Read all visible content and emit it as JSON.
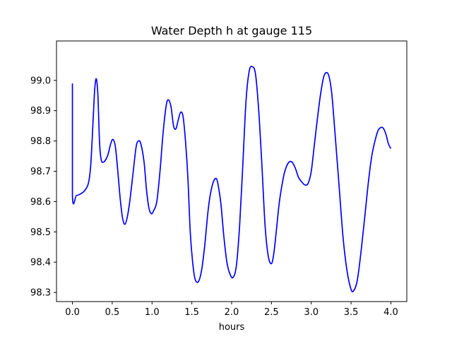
{
  "chart_data": {
    "type": "line",
    "title": "Water Depth h at gauge 115",
    "xlabel": "hours",
    "ylabel": "",
    "xlim": [
      -0.2,
      4.2
    ],
    "ylim": [
      98.27,
      99.13
    ],
    "x_ticks": [
      0.0,
      0.5,
      1.0,
      1.5,
      2.0,
      2.5,
      3.0,
      3.5,
      4.0
    ],
    "x_tick_labels": [
      "0.0",
      "0.5",
      "1.0",
      "1.5",
      "2.0",
      "2.5",
      "3.0",
      "3.5",
      "4.0"
    ],
    "y_ticks": [
      98.3,
      98.4,
      98.5,
      98.6,
      98.7,
      98.8,
      98.9,
      99.0
    ],
    "y_tick_labels": [
      "98.3",
      "98.4",
      "98.5",
      "98.6",
      "98.7",
      "98.8",
      "98.9",
      "99.0"
    ],
    "grid": false,
    "series": [
      {
        "color": "#0000ff",
        "x": [
          0.0,
          0.0,
          0.05,
          0.1,
          0.15,
          0.2,
          0.23,
          0.26,
          0.28,
          0.3,
          0.32,
          0.34,
          0.36,
          0.39,
          0.44,
          0.48,
          0.51,
          0.54,
          0.57,
          0.6,
          0.63,
          0.66,
          0.69,
          0.72,
          0.76,
          0.8,
          0.83,
          0.86,
          0.9,
          0.93,
          0.96,
          0.99,
          1.02,
          1.06,
          1.1,
          1.14,
          1.18,
          1.21,
          1.24,
          1.27,
          1.3,
          1.33,
          1.36,
          1.39,
          1.42,
          1.45,
          1.48,
          1.51,
          1.54,
          1.58,
          1.62,
          1.66,
          1.7,
          1.73,
          1.77,
          1.81,
          1.84,
          1.87,
          1.9,
          1.94,
          1.98,
          2.02,
          2.06,
          2.1,
          2.14,
          2.18,
          2.22,
          2.26,
          2.3,
          2.34,
          2.38,
          2.42,
          2.46,
          2.5,
          2.53,
          2.56,
          2.6,
          2.65,
          2.68,
          2.72,
          2.76,
          2.8,
          2.84,
          2.88,
          2.92,
          2.96,
          3.0,
          3.04,
          3.08,
          3.12,
          3.16,
          3.2,
          3.23,
          3.26,
          3.3,
          3.35,
          3.4,
          3.45,
          3.5,
          3.53,
          3.57,
          3.6,
          3.64,
          3.68,
          3.72,
          3.76,
          3.8,
          3.84,
          3.88,
          3.91,
          3.94,
          3.97,
          4.0
        ],
        "y": [
          98.99,
          98.62,
          98.62,
          98.625,
          98.635,
          98.66,
          98.72,
          98.87,
          98.97,
          99.005,
          98.95,
          98.8,
          98.74,
          98.73,
          98.75,
          98.79,
          98.805,
          98.78,
          98.7,
          98.61,
          98.545,
          98.525,
          98.55,
          98.6,
          98.69,
          98.78,
          98.8,
          98.79,
          98.73,
          98.64,
          98.58,
          98.56,
          98.57,
          98.6,
          98.7,
          98.83,
          98.92,
          98.935,
          98.91,
          98.85,
          98.84,
          98.87,
          98.895,
          98.88,
          98.8,
          98.68,
          98.5,
          98.4,
          98.345,
          98.335,
          98.37,
          98.45,
          98.56,
          98.62,
          98.665,
          98.675,
          98.64,
          98.58,
          98.49,
          98.4,
          98.36,
          98.35,
          98.39,
          98.52,
          98.72,
          98.93,
          99.03,
          99.045,
          99.02,
          98.9,
          98.72,
          98.52,
          98.42,
          98.395,
          98.43,
          98.5,
          98.6,
          98.68,
          98.71,
          98.73,
          98.73,
          98.71,
          98.68,
          98.665,
          98.655,
          98.66,
          98.7,
          98.79,
          98.88,
          98.96,
          99.015,
          99.025,
          99.005,
          98.95,
          98.82,
          98.65,
          98.48,
          98.37,
          98.31,
          98.305,
          98.33,
          98.38,
          98.47,
          98.57,
          98.67,
          98.75,
          98.8,
          98.835,
          98.845,
          98.84,
          98.82,
          98.79,
          98.775
        ]
      }
    ]
  }
}
